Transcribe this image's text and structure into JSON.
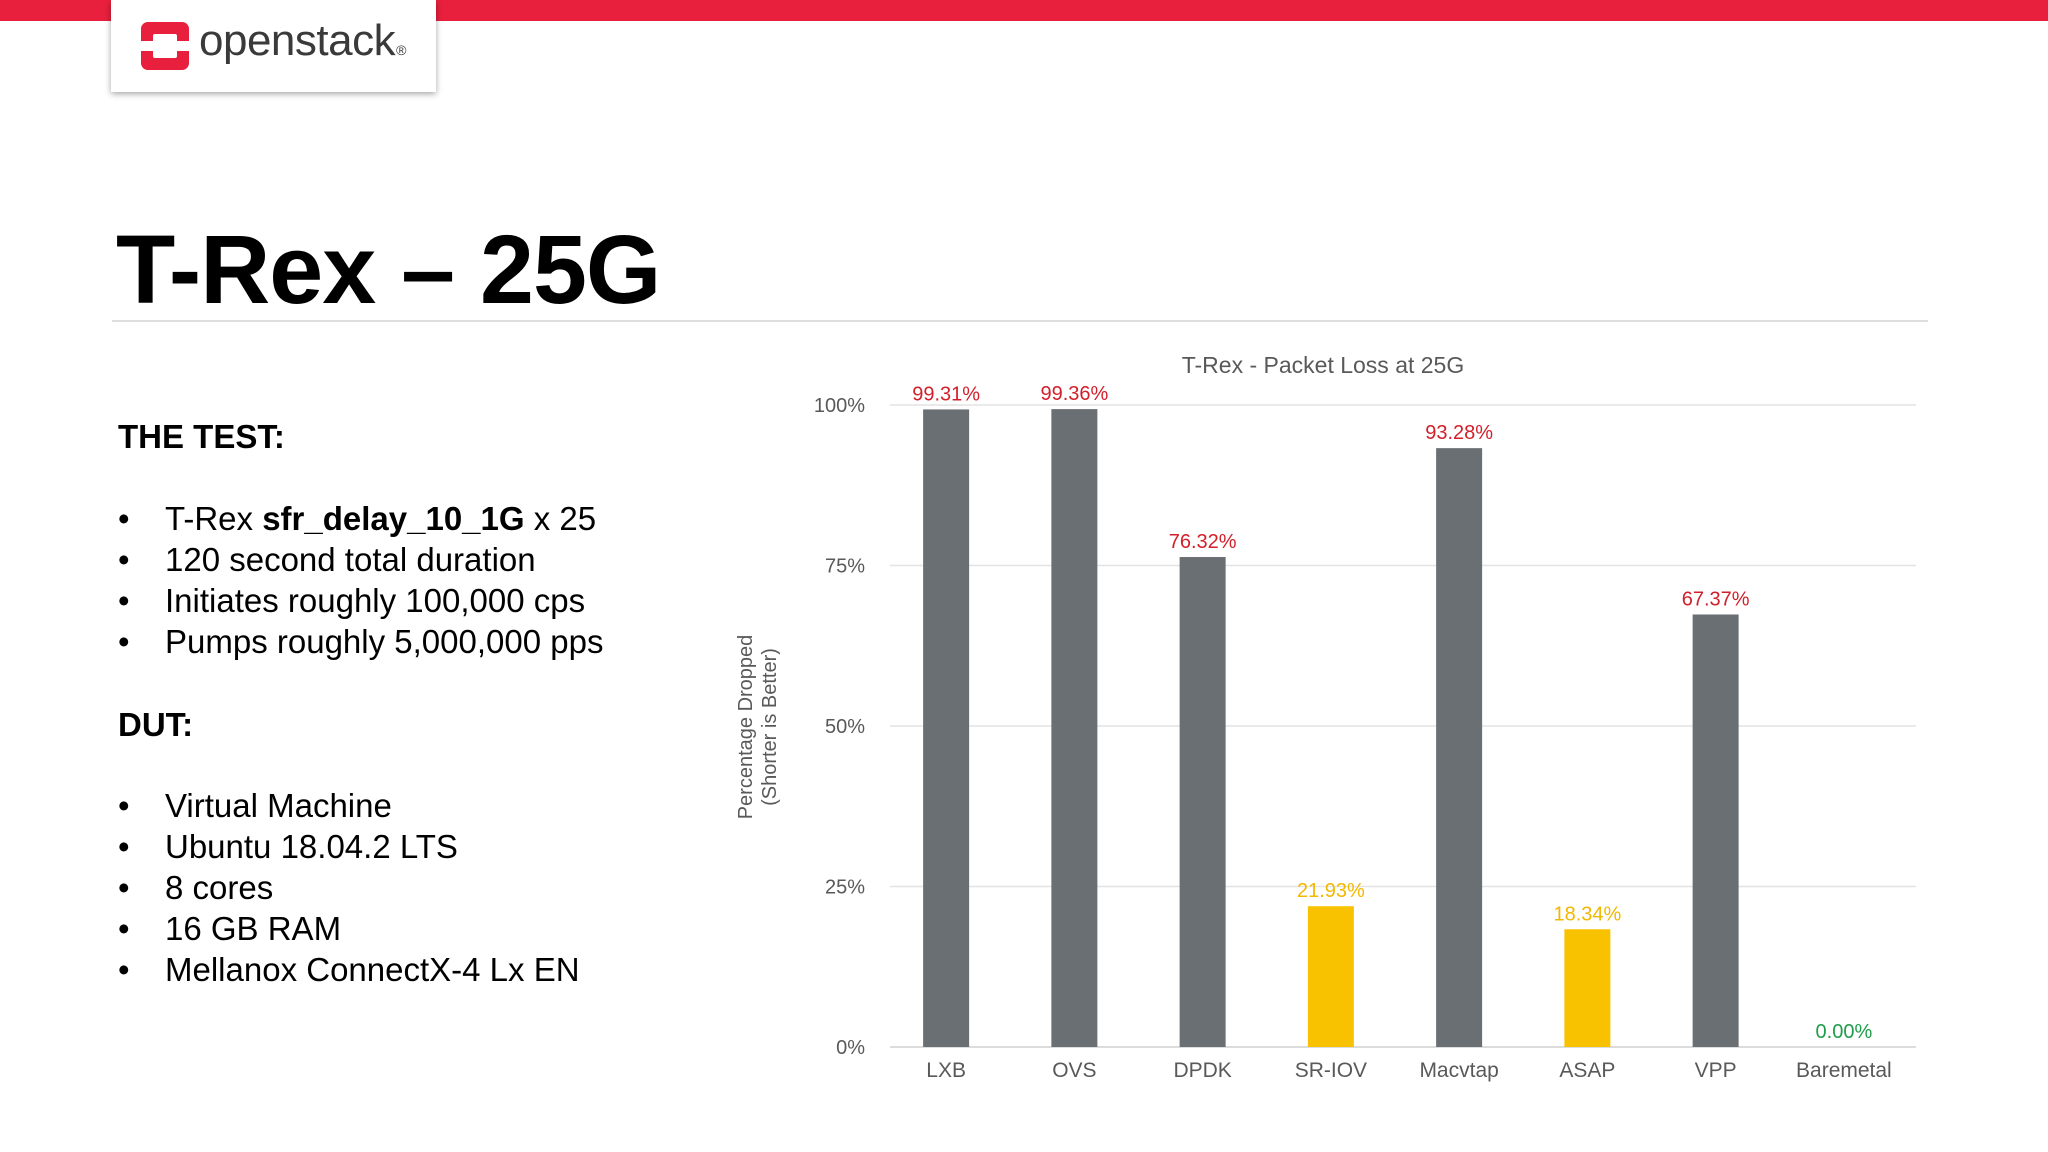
{
  "brand": {
    "logo_text": "openstack",
    "logo_mark": "trademark"
  },
  "slide": {
    "title": "T-Rex – 25G"
  },
  "test": {
    "heading": "THE TEST:",
    "items": [
      {
        "pre": "T-Rex ",
        "bold": "sfr_delay_10_1G",
        "post": " x 25"
      },
      {
        "pre": "120 second total duration",
        "bold": "",
        "post": ""
      },
      {
        "pre": "Initiates roughly 100,000 cps",
        "bold": "",
        "post": ""
      },
      {
        "pre": "Pumps roughly 5,000,000 pps",
        "bold": "",
        "post": ""
      }
    ]
  },
  "dut": {
    "heading": "DUT:",
    "items": [
      "Virtual Machine",
      "Ubuntu 18.04.2 LTS",
      "8 cores",
      "16 GB RAM",
      "Mellanox ConnectX-4 Lx EN"
    ]
  },
  "colors": {
    "brand_red": "#e8203d",
    "bar_gray": "#6a6f73",
    "bar_yellow": "#f9c200",
    "label_red": "#d21f2a",
    "label_yellow": "#f2b800",
    "label_green": "#1e9e4a"
  },
  "chart_data": {
    "type": "bar",
    "title": "T-Rex - Packet Loss at 25G",
    "xlabel": "",
    "ylabel": "Percentage Dropped",
    "ylabel2": "(Shorter is Better)",
    "ylim": [
      0,
      100
    ],
    "yticks": [
      0,
      25,
      50,
      75,
      100
    ],
    "ytick_labels": [
      "0%",
      "25%",
      "50%",
      "75%",
      "100%"
    ],
    "grid": true,
    "categories": [
      "LXB",
      "OVS",
      "DPDK",
      "SR-IOV",
      "Macvtap",
      "ASAP",
      "VPP",
      "Baremetal"
    ],
    "values": [
      99.31,
      99.36,
      76.32,
      21.93,
      93.28,
      18.34,
      67.37,
      0.0
    ],
    "value_labels": [
      "99.31%",
      "99.36%",
      "76.32%",
      "21.93%",
      "93.28%",
      "18.34%",
      "67.37%",
      "0.00%"
    ],
    "bar_colors": [
      "#6a6f73",
      "#6a6f73",
      "#6a6f73",
      "#f9c200",
      "#6a6f73",
      "#f9c200",
      "#6a6f73",
      "#6a6f73"
    ],
    "label_colors": [
      "#d21f2a",
      "#d21f2a",
      "#d21f2a",
      "#f2b800",
      "#d21f2a",
      "#f2b800",
      "#d21f2a",
      "#1e9e4a"
    ]
  }
}
